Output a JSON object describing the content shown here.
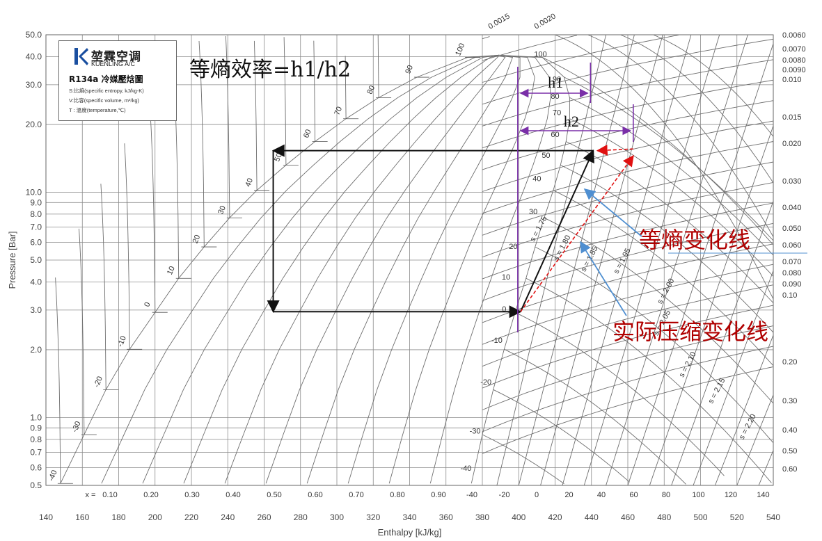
{
  "chart_data": {
    "type": "line",
    "xlabel": "Enthalpy [kJ/kg]",
    "ylabel": "Pressure [Bar]",
    "xlim": [
      140,
      540
    ],
    "ylim": [
      0.5,
      50
    ],
    "y_scale": "log",
    "x_ticks": [
      "140",
      "160",
      "180",
      "200",
      "220",
      "240",
      "260",
      "280",
      "300",
      "320",
      "340",
      "360",
      "380",
      "400",
      "420",
      "440",
      "460",
      "480",
      "500",
      "520",
      "540"
    ],
    "y_ticks": [
      {
        "v": 0.5,
        "label": "0.5"
      },
      {
        "v": 0.6,
        "label": "0.6"
      },
      {
        "v": 0.7,
        "label": "0.7"
      },
      {
        "v": 0.8,
        "label": "0.8"
      },
      {
        "v": 0.9,
        "label": "0.9"
      },
      {
        "v": 1.0,
        "label": "1.0"
      },
      {
        "v": 2.0,
        "label": "2.0"
      },
      {
        "v": 3.0,
        "label": "3.0"
      },
      {
        "v": 4.0,
        "label": "4.0"
      },
      {
        "v": 5.0,
        "label": "5.0"
      },
      {
        "v": 6.0,
        "label": "6.0"
      },
      {
        "v": 7.0,
        "label": "7.0"
      },
      {
        "v": 8.0,
        "label": "8.0"
      },
      {
        "v": 9.0,
        "label": "9.0"
      },
      {
        "v": 10.0,
        "label": "10.0"
      },
      {
        "v": 20.0,
        "label": "20.0"
      },
      {
        "v": 30.0,
        "label": "30.0"
      },
      {
        "v": 40.0,
        "label": "40.0"
      },
      {
        "v": 50.0,
        "label": "50.0"
      }
    ],
    "bottom_scale_label": "x =",
    "quality_labels": [
      "0.10",
      "0.20",
      "0.30",
      "0.40",
      "0.50",
      "0.60",
      "0.70",
      "0.80",
      "0.90"
    ],
    "superheat_temp_labels": [
      "-40",
      "-20",
      "0",
      "20",
      "40",
      "60",
      "80",
      "100",
      "120",
      "140"
    ],
    "temperature_lines": [
      {
        "t": "-40",
        "p": 0.51
      },
      {
        "t": "-30",
        "p": 0.84
      },
      {
        "t": "-20",
        "p": 1.33
      },
      {
        "t": "-10",
        "p": 2.01
      },
      {
        "t": "0",
        "p": 2.93
      },
      {
        "t": "10",
        "p": 4.15
      },
      {
        "t": "20",
        "p": 5.72
      },
      {
        "t": "30",
        "p": 7.7
      },
      {
        "t": "40",
        "p": 10.2
      },
      {
        "t": "50",
        "p": 13.2
      },
      {
        "t": "60",
        "p": 16.8
      },
      {
        "t": "70",
        "p": 21.2
      },
      {
        "t": "80",
        "p": 26.3
      },
      {
        "t": "90",
        "p": 32.4
      },
      {
        "t": "100",
        "p": 39.7
      }
    ],
    "vapor_temp_labels": [
      {
        "t": "100",
        "h": 412,
        "p": 40
      },
      {
        "t": "90",
        "h": 421,
        "p": 31
      },
      {
        "t": "80",
        "h": 420,
        "p": 26
      },
      {
        "t": "70",
        "h": 421,
        "p": 22
      },
      {
        "t": "60",
        "h": 420,
        "p": 17.6
      },
      {
        "t": "50",
        "h": 415,
        "p": 14.2
      },
      {
        "t": "40",
        "h": 410,
        "p": 11.2
      },
      {
        "t": "30",
        "h": 408,
        "p": 8.0
      },
      {
        "t": "20",
        "h": 397,
        "p": 5.6
      },
      {
        "t": "10",
        "h": 393,
        "p": 4.1
      },
      {
        "t": "0",
        "h": 392,
        "p": 2.96
      },
      {
        "t": "-10",
        "h": 388,
        "p": 2.15
      },
      {
        "t": "-20",
        "h": 382,
        "p": 1.4
      },
      {
        "t": "-30",
        "h": 376,
        "p": 0.85
      },
      {
        "t": "-40",
        "h": 371,
        "p": 0.58
      }
    ],
    "entropy_labels": [
      {
        "label": "s = 1.75",
        "h": 412,
        "p": 6.8
      },
      {
        "label": "s = 1.80",
        "h": 425,
        "p": 5.6
      },
      {
        "label": "s = 1.85",
        "h": 440,
        "p": 5.0
      },
      {
        "label": "s = 1.95",
        "h": 458,
        "p": 4.9
      },
      {
        "label": "s = 2.00",
        "h": 482,
        "p": 3.6
      },
      {
        "label": "s = 2.05",
        "h": 480,
        "p": 2.6
      },
      {
        "label": "s = 2.10",
        "h": 494,
        "p": 1.7
      },
      {
        "label": "s = 2.15",
        "h": 510,
        "p": 1.3
      },
      {
        "label": "s = 2.20",
        "h": 527,
        "p": 0.9
      }
    ],
    "volume_labels_top": [
      "0.0015",
      "0.0020"
    ],
    "volume_labels_right": [
      "0.0060",
      "0.0070",
      "0.0080",
      "0.0090",
      "0.010",
      "0.015",
      "0.020",
      "0.030",
      "0.040",
      "0.050",
      "0.060",
      "0.070",
      "0.080",
      "0.090",
      "0.10",
      "0.20",
      "0.30",
      "0.40",
      "0.50",
      "0.60"
    ],
    "cycle_points": {
      "evap_in": [
        265,
        2.95
      ],
      "evap_out": [
        401,
        2.95
      ],
      "cond_in": [
        441,
        15.3
      ],
      "cond_out": [
        265,
        15.3
      ],
      "actual_out": [
        463,
        14.5
      ]
    },
    "h1_label": "h1",
    "h2_label": "h2",
    "efficiency_label": "等熵效率=h1/h2",
    "isentropic_label": "等熵变化线",
    "actual_label": "实际压缩变化线",
    "colors": {
      "cycle": "#111111",
      "actual": "#e01010",
      "measure": "#7a2fa8",
      "annot": "#4f8fd1",
      "grid": "#7a7a7a"
    }
  },
  "logo": {
    "brand": "堃霖空调",
    "brand_en": "KUENLING A/C",
    "title": "R134a 冷媒壓焓圖",
    "line1": "S:比熵(specific entropy, kJ/kg-K)",
    "line2": "V:比容(specific volume, m³/kg)",
    "line3": "T : 溫度(temperature,℃)"
  }
}
